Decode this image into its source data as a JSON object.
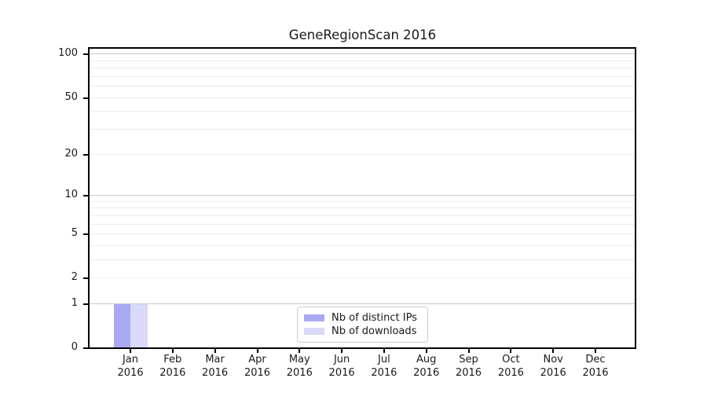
{
  "chart_data": {
    "type": "bar",
    "title": "GeneRegionScan 2016",
    "categories": [
      "Jan",
      "Feb",
      "Mar",
      "Apr",
      "May",
      "Jun",
      "Jul",
      "Aug",
      "Sep",
      "Oct",
      "Nov",
      "Dec"
    ],
    "category_year": "2016",
    "series": [
      {
        "name": "Nb of distinct IPs",
        "color": "#a9a9f2",
        "values": [
          1,
          0,
          0,
          0,
          0,
          0,
          0,
          0,
          0,
          0,
          0,
          0
        ]
      },
      {
        "name": "Nb of downloads",
        "color": "#dadaf8",
        "values": [
          1,
          0,
          0,
          0,
          0,
          0,
          0,
          0,
          0,
          0,
          0,
          0
        ]
      }
    ],
    "xlabel": "",
    "ylabel": "",
    "y_axis": {
      "scale": "log1p",
      "tick_values": [
        0,
        1,
        2,
        5,
        10,
        20,
        50,
        100
      ],
      "max": 111,
      "major_gridlines": [
        1,
        10,
        100
      ],
      "minor_gridlines": [
        2,
        3,
        4,
        5,
        6,
        7,
        8,
        9,
        20,
        30,
        40,
        50,
        60,
        70,
        80,
        90
      ]
    },
    "legend": {
      "position": "lower center, inside plot"
    },
    "colors": {
      "major_grid": "#c9c9c9",
      "minor_grid": "#ececec",
      "spine": "#000000",
      "background": "#ffffff",
      "text": "#1a1a1a"
    },
    "grid": "on (horizontal only)"
  }
}
